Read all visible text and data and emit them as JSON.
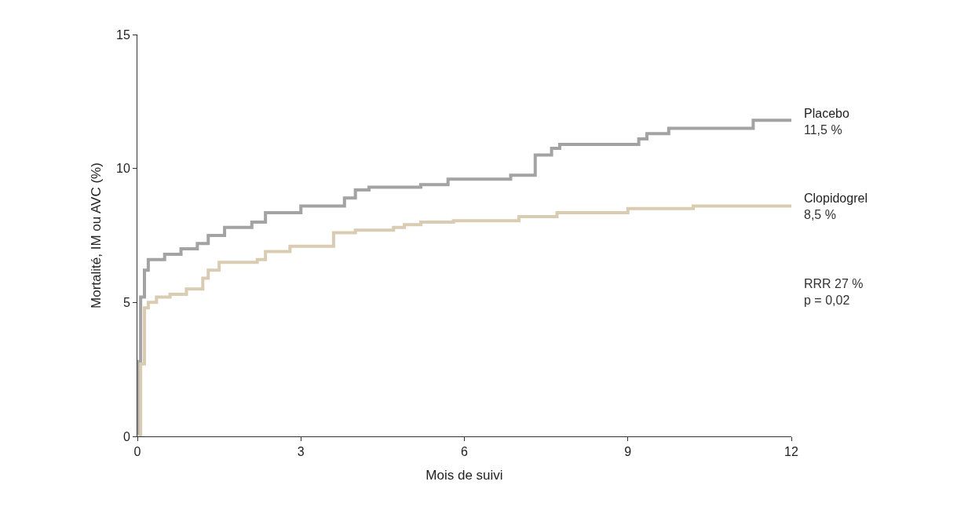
{
  "chart_data": {
    "type": "step",
    "xlabel": "Mois de suivi",
    "ylabel": "Mortalité, IM ou AVC (%)",
    "xlim": [
      0,
      12
    ],
    "xticks": [
      0,
      3,
      6,
      9,
      12
    ],
    "ylim": [
      0,
      15
    ],
    "yticks": [
      0,
      5,
      10,
      15
    ],
    "legend": false,
    "marker": "none",
    "line_style": "solid",
    "series": [
      {
        "name": "Placebo",
        "color": "#a3a3a3",
        "x": [
          0,
          0.03,
          0.06,
          0.13,
          0.2,
          0.5,
          0.8,
          1.1,
          1.3,
          1.6,
          2.1,
          2.35,
          3.0,
          3.8,
          4.0,
          4.25,
          5.2,
          5.7,
          6.85,
          7.3,
          7.6,
          7.75,
          9.2,
          9.35,
          9.75,
          10.0,
          11.3,
          12
        ],
        "values": [
          0,
          2.8,
          5.2,
          6.2,
          6.6,
          6.8,
          7.0,
          7.2,
          7.5,
          7.8,
          8.0,
          8.35,
          8.6,
          8.9,
          9.2,
          9.3,
          9.4,
          9.6,
          9.75,
          10.5,
          10.75,
          10.9,
          11.1,
          11.3,
          11.5,
          11.5,
          11.8,
          11.8
        ]
      },
      {
        "name": "Clopidogrel",
        "color": "#d9ccb2",
        "x": [
          0,
          0.06,
          0.13,
          0.2,
          0.35,
          0.6,
          0.9,
          1.2,
          1.3,
          1.5,
          2.2,
          2.35,
          2.8,
          3.5,
          3.6,
          4.0,
          4.7,
          4.9,
          5.2,
          5.8,
          7.0,
          7.7,
          9.0,
          10.2,
          12
        ],
        "values": [
          0,
          2.7,
          4.8,
          5.0,
          5.2,
          5.3,
          5.5,
          5.9,
          6.2,
          6.5,
          6.6,
          6.9,
          7.1,
          7.1,
          7.6,
          7.7,
          7.8,
          7.9,
          8.0,
          8.05,
          8.2,
          8.35,
          8.5,
          8.6,
          8.65
        ]
      }
    ],
    "annotations": [
      {
        "text": "11,5 %",
        "x": 12,
        "y": 11.8
      },
      {
        "text": "8,5 %",
        "x": 12,
        "y": 8.65
      },
      "RRR 27 %\np = 0,02"
    ]
  }
}
